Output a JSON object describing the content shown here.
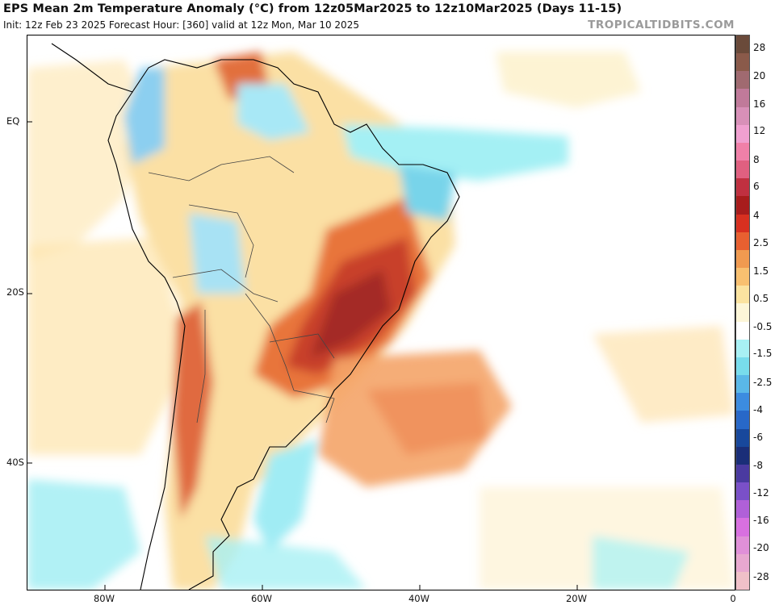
{
  "header": {
    "title": "EPS Mean 2m Temperature Anomaly (°C) from 12z05Mar2025 to 12z10Mar2025 (Days 11-15)",
    "subtitle": "Init: 12z Feb 23 2025   Forecast Hour: [360]   valid at 12z Mon, Mar 10 2025",
    "brand": "TROPICALTIDBITS.COM"
  },
  "map": {
    "lat_labels": [
      "EQ",
      "20S",
      "40S"
    ],
    "lon_labels": [
      "80W",
      "60W",
      "40W",
      "20W",
      "0"
    ],
    "ocean_color": "#ffffff",
    "land_outline_color": "#000000"
  },
  "colorbar": {
    "labels": [
      "28",
      "20",
      "16",
      "12",
      "8",
      "6",
      "4",
      "2.5",
      "1.5",
      "0.5",
      "-0.5",
      "-1.5",
      "-2.5",
      "-4",
      "-6",
      "-8",
      "-12",
      "-16",
      "-20",
      "-28"
    ],
    "colors": [
      "#6a4a3a",
      "#8a5a4a",
      "#a06a70",
      "#c07a9a",
      "#d890b8",
      "#f0a0d0",
      "#f080a8",
      "#e06080",
      "#c03040",
      "#a81c1c",
      "#d83020",
      "#e86030",
      "#f09a50",
      "#f8c070",
      "#fbe3a0",
      "#fdf6d8",
      "#ffffff",
      "#a8f0f4",
      "#78dcec",
      "#5ab8e8",
      "#3c8ce0",
      "#2868c8",
      "#18489c",
      "#1a2e78",
      "#4a3aa0",
      "#7a50c8",
      "#b060d8",
      "#d870e0",
      "#e090d8",
      "#e8a8d0",
      "#f0c0c8"
    ]
  }
}
